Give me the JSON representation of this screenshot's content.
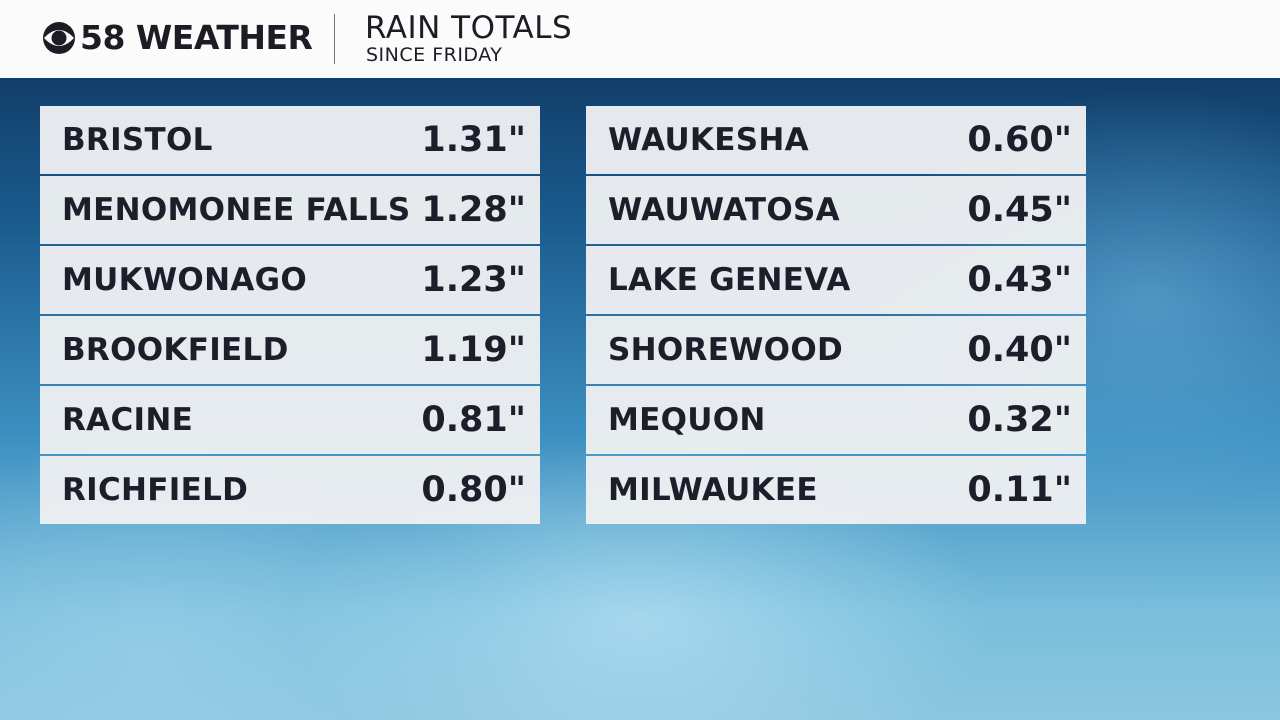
{
  "header": {
    "brand": "58 WEATHER",
    "title": "RAIN TOTALS",
    "subtitle": "SINCE FRIDAY"
  },
  "tables": [
    {
      "rows": [
        [
          "BRISTOL",
          "1.31\""
        ],
        [
          "MENOMONEE FALLS",
          "1.28\""
        ],
        [
          "MUKWONAGO",
          "1.23\""
        ],
        [
          "BROOKFIELD",
          "1.19\""
        ],
        [
          "RACINE",
          "0.81\""
        ],
        [
          "RICHFIELD",
          "0.80\""
        ]
      ]
    },
    {
      "rows": [
        [
          "WAUKESHA",
          "0.60\""
        ],
        [
          "WAUWATOSA",
          "0.45\""
        ],
        [
          "LAKE GENEVA",
          "0.43\""
        ],
        [
          "SHOREWOOD",
          "0.40\""
        ],
        [
          "MEQUON",
          "0.32\""
        ],
        [
          "MILWAUKEE",
          "0.11\""
        ]
      ]
    }
  ]
}
